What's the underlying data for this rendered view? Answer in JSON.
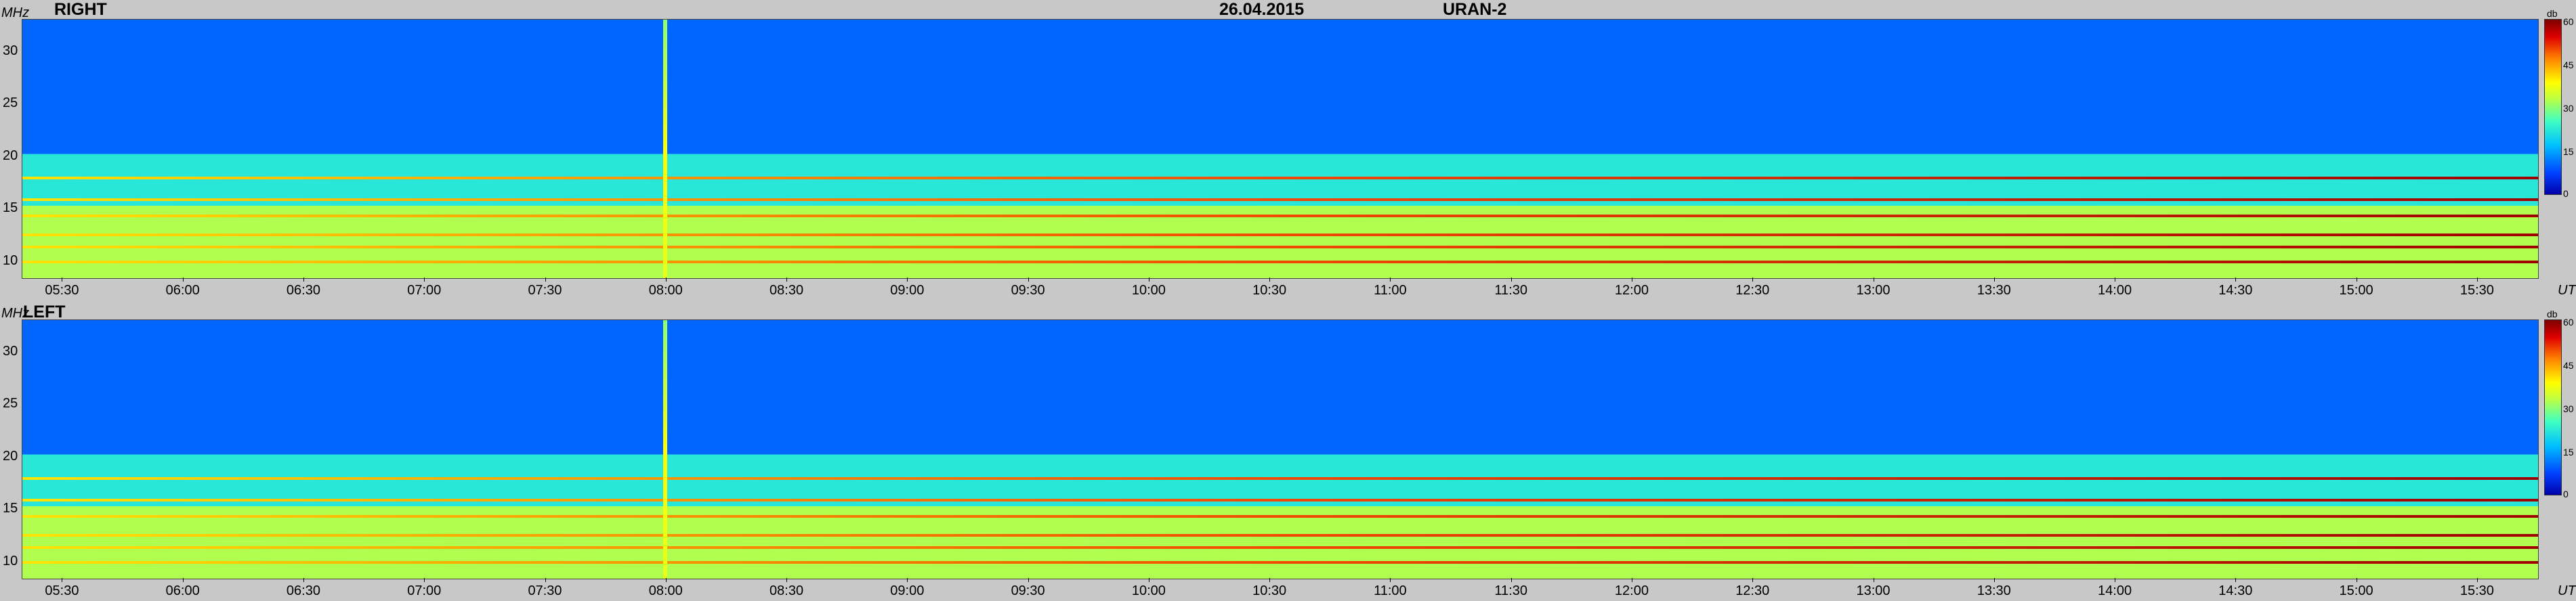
{
  "header": {
    "date": "26.04.2015",
    "station": "URAN-2"
  },
  "panels": [
    {
      "title": "RIGHT"
    },
    {
      "title": "LEFT"
    }
  ],
  "y_axis": {
    "unit": "MHz",
    "ticks": [
      "30",
      "25",
      "20",
      "15",
      "10"
    ]
  },
  "x_axis": {
    "unit": "UT",
    "ticks": [
      "05:30",
      "06:00",
      "06:30",
      "07:00",
      "07:30",
      "08:00",
      "08:30",
      "09:00",
      "09:30",
      "10:00",
      "10:30",
      "11:00",
      "11:30",
      "12:00",
      "12:30",
      "13:00",
      "13:30",
      "14:00",
      "14:30",
      "15:00",
      "15:30"
    ]
  },
  "colorbar": {
    "unit": "db",
    "ticks": [
      "60",
      "45",
      "30",
      "15",
      "0"
    ]
  },
  "chart_data": [
    {
      "type": "heatmap",
      "title": "RIGHT",
      "ylabel": "MHz",
      "xlabel": "UT",
      "ylim": [
        8,
        33
      ],
      "xlim": [
        "05:20",
        "15:45"
      ],
      "colorbar_label": "db",
      "colorbar_range": [
        0,
        60
      ],
      "features": {
        "strong_bands_mhz": [
          17.7,
          15.6,
          14.0,
          12.2,
          11.0,
          9.6
        ],
        "burst_time": "08:00",
        "band_mean_db": [
          {
            "range_mhz": [
              20,
              33
            ],
            "level_db": 10
          },
          {
            "range_mhz": [
              15,
              20
            ],
            "level_db": 22
          },
          {
            "range_mhz": [
              8,
              15
            ],
            "level_db": 32
          }
        ]
      }
    },
    {
      "type": "heatmap",
      "title": "LEFT",
      "ylabel": "MHz",
      "xlabel": "UT",
      "ylim": [
        8,
        33
      ],
      "xlim": [
        "05:20",
        "15:45"
      ],
      "colorbar_label": "db",
      "colorbar_range": [
        0,
        60
      ],
      "features": {
        "strong_bands_mhz": [
          17.7,
          15.6,
          14.0,
          12.2,
          11.0,
          9.6
        ],
        "burst_time": "08:00",
        "band_mean_db": [
          {
            "range_mhz": [
              20,
              33
            ],
            "level_db": 10
          },
          {
            "range_mhz": [
              15,
              20
            ],
            "level_db": 22
          },
          {
            "range_mhz": [
              8,
              15
            ],
            "level_db": 32
          }
        ]
      }
    }
  ]
}
